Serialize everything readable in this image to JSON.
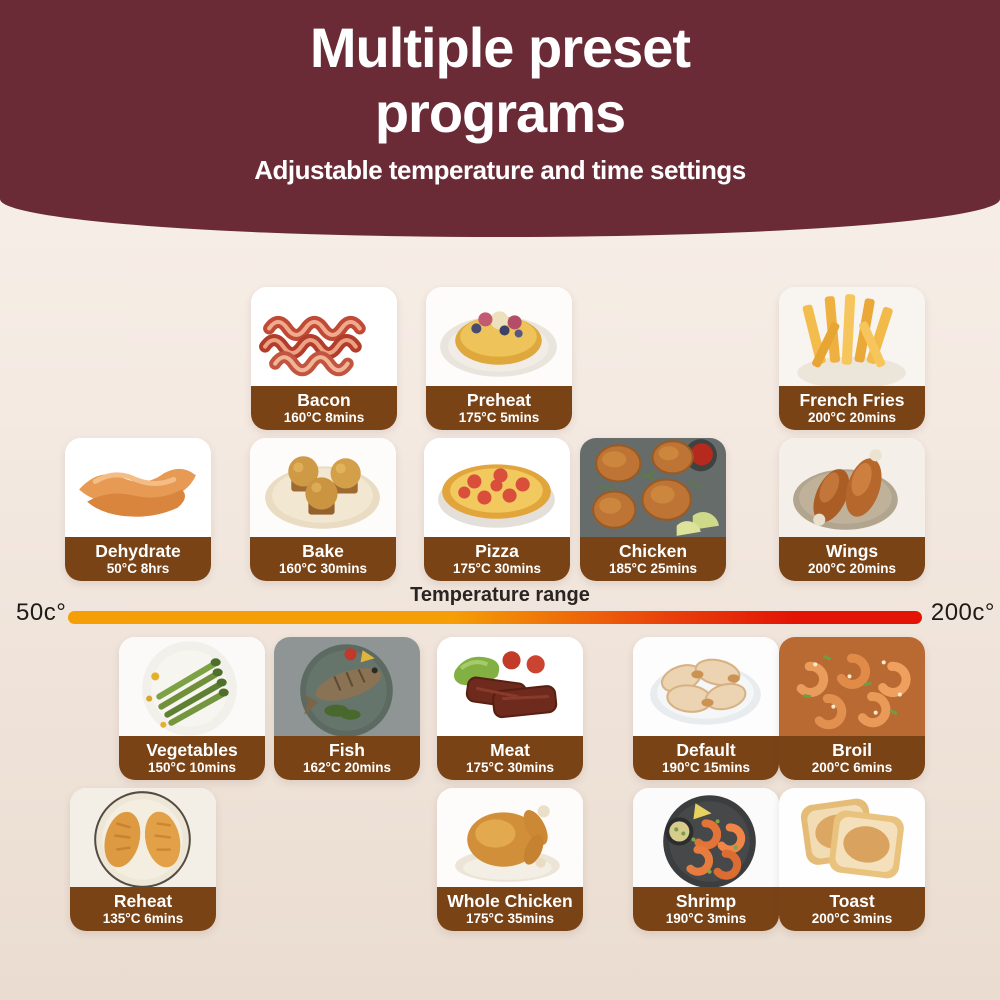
{
  "header": {
    "title_line1": "Multiple preset",
    "title_line2": "programs",
    "subtitle": "Adjustable temperature and time settings"
  },
  "temperature_range": {
    "title": "Temperature range",
    "min_label": "50c°",
    "max_label": "200c°",
    "gradient_start_color": "#F59E06",
    "gradient_end_color": "#E31405"
  },
  "theme": {
    "header_color": "#6A2B36",
    "card_label_color": "#7A4316",
    "background_top": "#F8F1EB",
    "background_bottom": "#EADCD0"
  },
  "cards": [
    {
      "id": "bacon",
      "name": "Bacon",
      "setting": "160°C 8mins",
      "icon": "bacon-image"
    },
    {
      "id": "preheat",
      "name": "Preheat",
      "setting": "175°C 5mins",
      "icon": "preheat-tart-image"
    },
    {
      "id": "french-fries",
      "name": "French Fries",
      "setting": "200°C 20mins",
      "icon": "french-fries-image"
    },
    {
      "id": "dehydrate",
      "name": "Dehydrate",
      "setting": "50°C 8hrs",
      "icon": "dehydrate-image"
    },
    {
      "id": "bake",
      "name": "Bake",
      "setting": "160°C 30mins",
      "icon": "bake-muffins-image"
    },
    {
      "id": "pizza",
      "name": "Pizza",
      "setting": "175°C 30mins",
      "icon": "pizza-image"
    },
    {
      "id": "chicken",
      "name": "Chicken",
      "setting": "185°C 25mins",
      "icon": "chicken-image"
    },
    {
      "id": "wings",
      "name": "Wings",
      "setting": "200°C 20mins",
      "icon": "wings-image"
    },
    {
      "id": "vegetables",
      "name": "Vegetables",
      "setting": "150°C 10mins",
      "icon": "vegetables-image"
    },
    {
      "id": "fish",
      "name": "Fish",
      "setting": "162°C 20mins",
      "icon": "fish-image"
    },
    {
      "id": "meat",
      "name": "Meat",
      "setting": "175°C 30mins",
      "icon": "meat-image"
    },
    {
      "id": "default",
      "name": "Default",
      "setting": "190°C 15mins",
      "icon": "default-wings-image"
    },
    {
      "id": "broil",
      "name": "Broil",
      "setting": "200°C 6mins",
      "icon": "broil-shrimp-image"
    },
    {
      "id": "reheat",
      "name": "Reheat",
      "setting": "135°C 6mins",
      "icon": "reheat-croissants-image"
    },
    {
      "id": "whole-chicken",
      "name": "Whole Chicken",
      "setting": "175°C 35mins",
      "icon": "whole-chicken-image"
    },
    {
      "id": "shrimp",
      "name": "Shrimp",
      "setting": "190°C 3mins",
      "icon": "shrimp-image"
    },
    {
      "id": "toast",
      "name": "Toast",
      "setting": "200°C 3mins",
      "icon": "toast-image"
    }
  ]
}
